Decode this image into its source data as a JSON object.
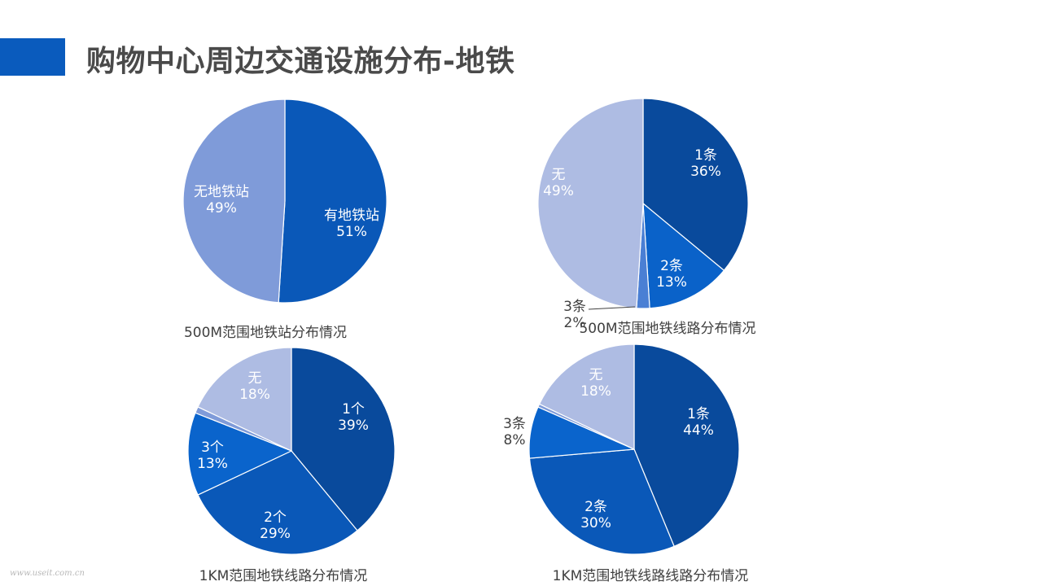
{
  "page": {
    "title": "购物中心周边交通设施分布-地铁",
    "watermark": "www.useit.com.cn"
  },
  "colors": {
    "accent": "#0a5bbd"
  },
  "chart_data": [
    {
      "type": "pie",
      "caption": "500M范围地铁站分布情况",
      "slices": [
        {
          "label": "有地铁站",
          "value": 51,
          "display": "51%",
          "color": "#0a58b8"
        },
        {
          "label": "无地铁站",
          "value": 49,
          "display": "49%",
          "color": "#7f9bd9"
        }
      ]
    },
    {
      "type": "pie",
      "caption": "500M范围地铁线路分布情况",
      "slices": [
        {
          "label": "1条",
          "value": 36,
          "display": "36%",
          "color": "#094a9c"
        },
        {
          "label": "2条",
          "value": 13,
          "display": "13%",
          "color": "#0a62c9"
        },
        {
          "label": "3条",
          "value": 2,
          "display": "2%",
          "color": "#4a7fd4"
        },
        {
          "label": "无",
          "value": 49,
          "display": "49%",
          "color": "#aebce3"
        }
      ]
    },
    {
      "type": "pie",
      "caption": "1KM范围地铁线路分布情况",
      "slices": [
        {
          "label": "1个",
          "value": 39,
          "display": "39%",
          "color": "#094a9c"
        },
        {
          "label": "2个",
          "value": 29,
          "display": "29%",
          "color": "#0a58b8"
        },
        {
          "label": "3个",
          "value": 13,
          "display": "13%",
          "color": "#0a64cc"
        },
        {
          "label": "",
          "value": 1,
          "display": "",
          "color": "#7f9bd9"
        },
        {
          "label": "无",
          "value": 18,
          "display": "18%",
          "color": "#aebce3"
        }
      ]
    },
    {
      "type": "pie",
      "caption": "1KM范围地铁线路线路分布情况",
      "slices": [
        {
          "label": "1条",
          "value": 44,
          "display": "44%",
          "color": "#094a9c"
        },
        {
          "label": "2条",
          "value": 30,
          "display": "30%",
          "color": "#0a58b8"
        },
        {
          "label": "3条",
          "value": 8,
          "display": "8%",
          "color": "#0a64cc"
        },
        {
          "label": "",
          "value": 0.5,
          "display": "",
          "color": "#7f9bd9"
        },
        {
          "label": "无",
          "value": 18,
          "display": "18%",
          "color": "#aebce3"
        }
      ]
    }
  ]
}
